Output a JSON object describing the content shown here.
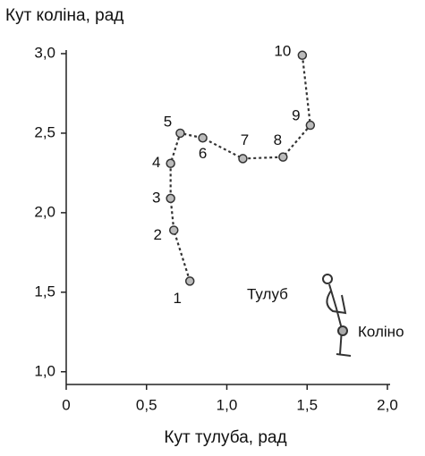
{
  "chart_data": {
    "type": "scatter",
    "x_label": "Кут тулуба, рад",
    "y_label": "Кут коліна, рад",
    "x": [
      0.77,
      0.67,
      0.65,
      0.65,
      0.71,
      0.85,
      1.1,
      1.35,
      1.52,
      1.47
    ],
    "values": [
      1.57,
      1.89,
      2.09,
      2.31,
      2.5,
      2.47,
      2.34,
      2.35,
      2.55,
      2.99
    ],
    "point_labels": [
      "1",
      "2",
      "3",
      "4",
      "5",
      "6",
      "7",
      "8",
      "9",
      "10"
    ],
    "annotations": [
      "Тулуб",
      "Коліно"
    ],
    "color": "#333333",
    "xlim": [
      0,
      2.0
    ],
    "ylim": [
      0.92,
      3.0
    ],
    "xticks": [
      0,
      {
        "value": 0.5,
        "label": "0,5"
      },
      {
        "value": 1.0,
        "label": "1,0"
      },
      {
        "value": 1.5,
        "label": "1,5"
      },
      {
        "value": 2.0,
        "label": "2,0"
      }
    ],
    "yticks": [
      {
        "value": 1.0,
        "label": "1,0"
      },
      {
        "value": 1.5,
        "label": "1,5"
      },
      {
        "value": 2.0,
        "label": "2,0"
      },
      {
        "value": 2.5,
        "label": "2,5"
      },
      {
        "value": 3.0,
        "label": "3,0"
      }
    ]
  }
}
